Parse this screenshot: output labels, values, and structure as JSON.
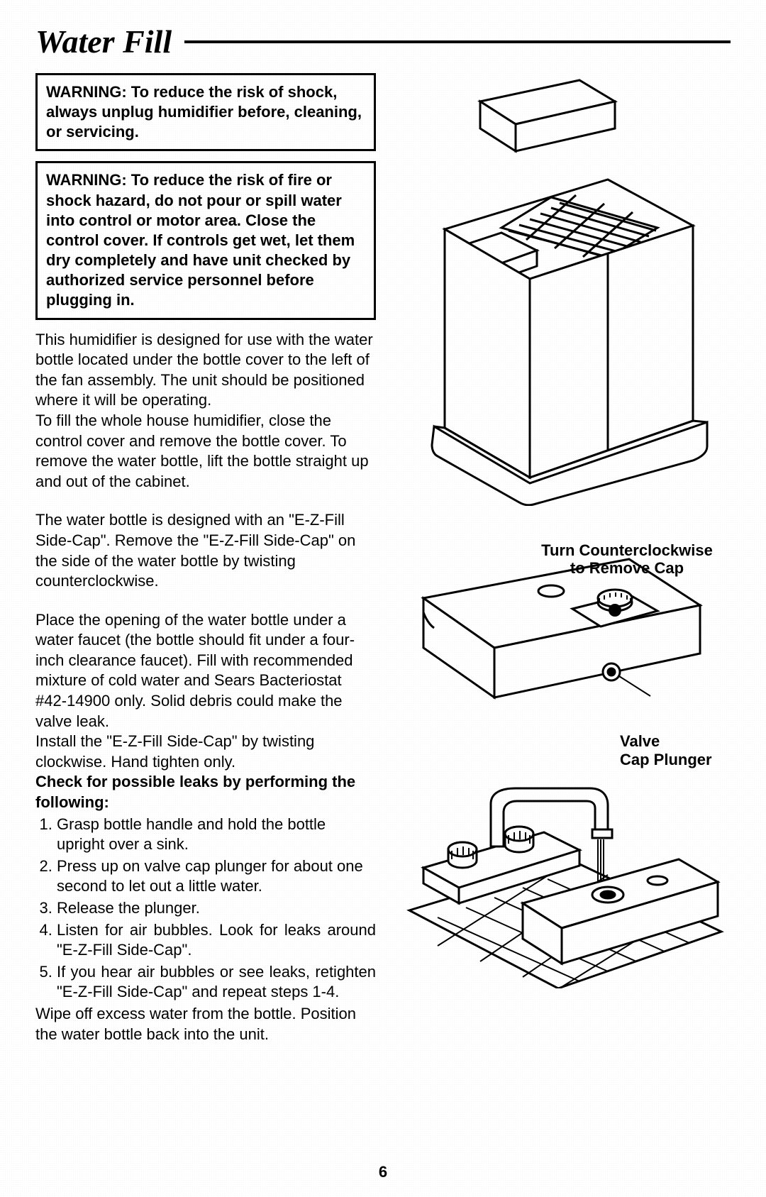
{
  "title": "Water Fill",
  "warning1": "WARNING: To reduce the risk of shock, always unplug humidifier before, cleaning, or servicing.",
  "warning2": "WARNING: To reduce the risk of fire or shock hazard, do not pour or spill water into control or motor area. Close the control cover. If controls get wet, let them dry completely and have unit checked by authorized service personnel before plugging in.",
  "para1": "This humidifier is designed for use with the water bottle located under the bottle cover to the left of the fan assembly. The unit should be positioned where it will be operating.",
  "para2": "To fill the whole house humidifier, close the control cover and remove the bottle cover. To remove the water bottle, lift the bottle straight up and out of the cabinet.",
  "para3": "The water bottle is designed with an \"E-Z-Fill Side-Cap\". Remove the \"E-Z-Fill Side-Cap\" on the side of the water bottle by twisting counterclockwise.",
  "para4": "Place the opening of the water bottle under a water faucet (the bottle should fit under a four-inch clearance faucet). Fill with recommended mixture of cold water and Sears Bacteriostat #42-14900 only. Solid debris could make the valve leak.",
  "para5": "Install the \"E-Z-Fill Side-Cap\" by twisting clockwise. Hand tighten only.",
  "check_head": "Check for possible leaks by performing the following:",
  "steps": [
    "Grasp bottle handle and hold the bottle upright over a sink.",
    "Press up on valve cap plunger for about one second to let out a little water.",
    "Release the plunger.",
    "Listen for air bubbles. Look for leaks around \"E-Z-Fill Side-Cap\".",
    "If you hear air bubbles or see leaks, retighten \"E-Z-Fill Side-Cap\" and repeat steps 1-4."
  ],
  "para6": "Wipe off excess water from the bottle. Position the water bottle back into the unit.",
  "page_number": "6",
  "fig2_caption_top": "Turn Counterclockwise\nto Remove Cap",
  "fig2_label_valve": "Valve\nCap Plunger",
  "illustration_stroke": "#000000",
  "illustration_fill": "#ffffff"
}
